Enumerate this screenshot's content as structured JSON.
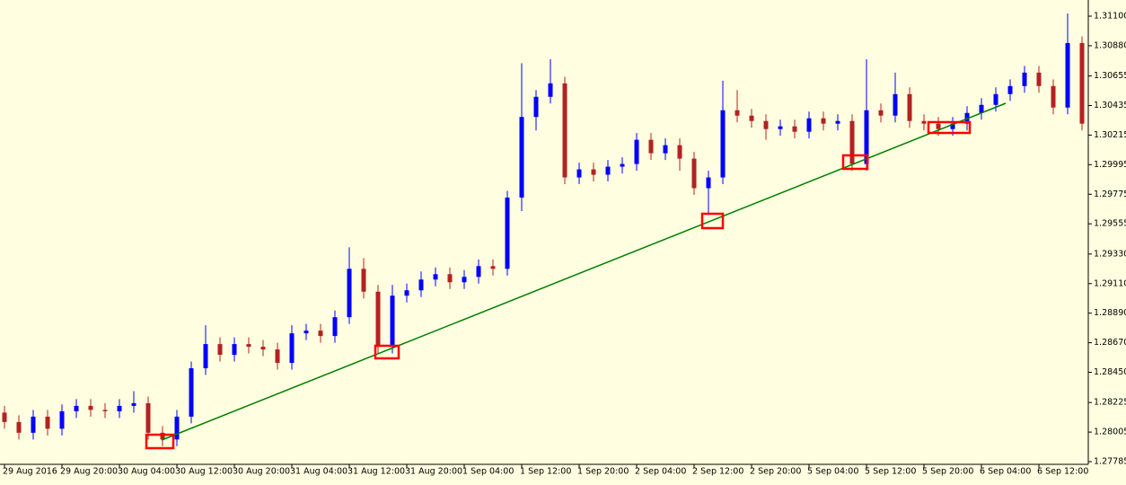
{
  "chart_data": {
    "type": "candlestick",
    "up_color": "#0000ff",
    "down_color": "#b22222",
    "categories": [
      "29 Aug 2016",
      null,
      null,
      null,
      "29 Aug 20:00",
      null,
      null,
      null,
      "30 Aug 04:00",
      null,
      null,
      null,
      "30 Aug 12:00",
      null,
      null,
      null,
      "30 Aug 20:00",
      null,
      null,
      null,
      "31 Aug 04:00",
      null,
      null,
      null,
      "31 Aug 12:00",
      null,
      null,
      null,
      "31 Aug 20:00",
      null,
      null,
      null,
      "1 Sep 04:00",
      null,
      null,
      null,
      "1 Sep 12:00",
      null,
      null,
      null,
      "1 Sep 20:00",
      null,
      null,
      null,
      "2 Sep 04:00",
      null,
      null,
      null,
      "2 Sep 12:00",
      null,
      null,
      null,
      "2 Sep 20:00",
      null,
      null,
      null,
      "5 Sep 04:00",
      null,
      null,
      null,
      "5 Sep 12:00",
      null,
      null,
      null,
      "5 Sep 20:00",
      null,
      null,
      null,
      "6 Sep 04:00",
      null,
      null,
      null,
      "6 Sep 12:00",
      null,
      null,
      null
    ],
    "open": [
      1.2815,
      1.2808,
      1.28,
      1.2812,
      1.2803,
      1.2816,
      1.282,
      1.2817,
      1.2816,
      1.282,
      1.2822,
      1.28,
      1.2795,
      1.2812,
      1.2848,
      1.2866,
      1.2858,
      1.2866,
      1.2864,
      1.2862,
      1.2852,
      1.2874,
      1.2876,
      1.2872,
      1.2886,
      1.2922,
      1.2905,
      1.2864,
      1.2902,
      1.2906,
      1.2914,
      1.2918,
      1.2912,
      1.2916,
      1.2924,
      1.2922,
      1.2975,
      1.3035,
      1.305,
      1.306,
      1.299,
      1.2996,
      1.2992,
      1.2998,
      1.3,
      1.3018,
      1.3008,
      1.3014,
      1.3004,
      1.2982,
      1.299,
      1.304,
      1.3036,
      1.3032,
      1.3026,
      1.3028,
      1.3024,
      1.3034,
      1.303,
      1.3032,
      1.3,
      1.304,
      1.3036,
      1.3052,
      1.3032,
      1.303,
      1.3026,
      1.303,
      1.3038,
      1.3044,
      1.3052,
      1.3058,
      1.3068,
      1.3058,
      1.3042,
      1.309
    ],
    "high": [
      1.282,
      1.2813,
      1.2817,
      1.2817,
      1.2821,
      1.2825,
      1.2825,
      1.2822,
      1.2825,
      1.2831,
      1.2827,
      1.2805,
      1.2817,
      1.2853,
      1.288,
      1.2871,
      1.2871,
      1.2871,
      1.2869,
      1.2867,
      1.288,
      1.2881,
      1.2881,
      1.2891,
      1.2938,
      1.293,
      1.291,
      1.291,
      1.2911,
      1.292,
      1.2923,
      1.2923,
      1.2921,
      1.2929,
      1.2929,
      1.298,
      1.3075,
      1.3055,
      1.3078,
      1.3065,
      1.3001,
      1.3001,
      1.3003,
      1.3005,
      1.3023,
      1.3023,
      1.3019,
      1.3019,
      1.3009,
      1.2995,
      1.3062,
      1.3055,
      1.3041,
      1.3037,
      1.3033,
      1.3033,
      1.3039,
      1.3039,
      1.3037,
      1.3037,
      1.3078,
      1.3045,
      1.3068,
      1.3057,
      1.3037,
      1.3035,
      1.3035,
      1.3043,
      1.3049,
      1.3057,
      1.3063,
      1.3073,
      1.3073,
      1.3063,
      1.3112,
      1.3095
    ],
    "low": [
      1.2803,
      1.2795,
      1.2795,
      1.2798,
      1.2798,
      1.2811,
      1.2812,
      1.2811,
      1.2811,
      1.2815,
      1.2795,
      1.279,
      1.279,
      1.2807,
      1.2843,
      1.2853,
      1.2853,
      1.2859,
      1.2857,
      1.2847,
      1.2847,
      1.2869,
      1.2867,
      1.2867,
      1.2881,
      1.29,
      1.2859,
      1.2859,
      1.2897,
      1.2901,
      1.2909,
      1.2907,
      1.2907,
      1.2911,
      1.2917,
      1.2917,
      1.2965,
      1.3025,
      1.3045,
      1.2985,
      1.2985,
      1.2987,
      1.2987,
      1.2993,
      1.2995,
      1.3003,
      1.3003,
      1.2995,
      1.2977,
      1.2962,
      1.2985,
      1.3031,
      1.3027,
      1.3018,
      1.3021,
      1.3019,
      1.3019,
      1.3025,
      1.3025,
      1.2995,
      1.2995,
      1.3031,
      1.3031,
      1.3027,
      1.3025,
      1.3021,
      1.3021,
      1.3025,
      1.3033,
      1.3039,
      1.3047,
      1.3053,
      1.3053,
      1.3037,
      1.3037,
      1.3025
    ],
    "close": [
      1.2808,
      1.28,
      1.2812,
      1.2803,
      1.2816,
      1.282,
      1.2817,
      1.2816,
      1.282,
      1.2822,
      1.28,
      1.2795,
      1.2812,
      1.2848,
      1.2866,
      1.2858,
      1.2866,
      1.2864,
      1.2862,
      1.2852,
      1.2874,
      1.2876,
      1.2872,
      1.2886,
      1.2922,
      1.2905,
      1.2864,
      1.2902,
      1.2906,
      1.2914,
      1.2918,
      1.2912,
      1.2916,
      1.2924,
      1.2922,
      1.2975,
      1.3035,
      1.305,
      1.306,
      1.299,
      1.2996,
      1.2992,
      1.2998,
      1.3,
      1.3018,
      1.3008,
      1.3014,
      1.3004,
      1.2982,
      1.299,
      1.304,
      1.3036,
      1.3032,
      1.3026,
      1.3028,
      1.3024,
      1.3034,
      1.303,
      1.3032,
      1.3,
      1.304,
      1.3036,
      1.3052,
      1.3032,
      1.303,
      1.3026,
      1.303,
      1.3038,
      1.3044,
      1.3052,
      1.3058,
      1.3068,
      1.3058,
      1.3042,
      1.309,
      1.303
    ],
    "ylim": [
      1.27765,
      1.31207
    ],
    "yticks": [
      {
        "value": 1.311,
        "label": "1.31100"
      },
      {
        "value": 1.3088,
        "label": "1.30880"
      },
      1.30655,
      1.30435,
      1.30215,
      1.29995,
      1.29775,
      1.29555,
      {
        "value": 1.2933,
        "label": "1.29330"
      },
      {
        "value": 1.2911,
        "label": "1.29110"
      },
      {
        "value": 1.2889,
        "label": "1.28890"
      },
      {
        "value": 1.2867,
        "label": "1.28670"
      },
      {
        "value": 1.2845,
        "label": "1.28450"
      },
      1.28225,
      1.28005,
      1.27785
    ]
  }
}
